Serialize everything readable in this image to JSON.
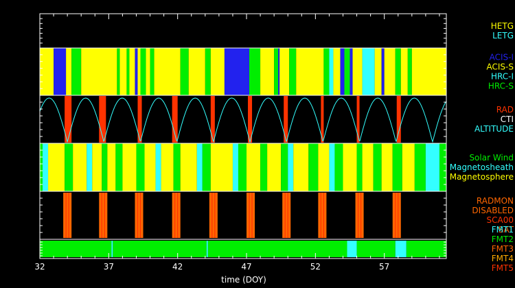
{
  "chart_data": {
    "type": "timeline",
    "xlabel": "time (DOY)",
    "xlim": [
      32,
      61.5
    ],
    "xticks": [
      32,
      37,
      42,
      47,
      52,
      57
    ],
    "colors": {
      "yellow": "#ffff00",
      "cyan": "#33ffff",
      "blue": "#2222ee",
      "green": "#00ee00",
      "red": "#ff3300",
      "orange": "#ff6600",
      "white": "#ffffff"
    },
    "panels": [
      {
        "id": "grating",
        "legend": [
          {
            "label": "HETG",
            "color": "#ffff00"
          },
          {
            "label": "LETG",
            "color": "#33ffff"
          }
        ],
        "segments": []
      },
      {
        "id": "instrument",
        "legend": [
          {
            "label": "ACIS-I",
            "color": "#2222ee"
          },
          {
            "label": "ACIS-S",
            "color": "#ffff00"
          },
          {
            "label": "HRC-I",
            "color": "#33ffff"
          },
          {
            "label": "HRC-S",
            "color": "#00ee00"
          }
        ],
        "segments": [
          [
            32.0,
            33.0,
            "ACIS-S"
          ],
          [
            33.0,
            33.9,
            "ACIS-I"
          ],
          [
            33.9,
            34.3,
            "ACIS-S"
          ],
          [
            34.3,
            35.0,
            "HRC-S"
          ],
          [
            35.0,
            37.6,
            "ACIS-S"
          ],
          [
            37.6,
            37.8,
            "HRC-S"
          ],
          [
            37.8,
            38.3,
            "ACIS-S"
          ],
          [
            38.3,
            38.5,
            "HRC-S"
          ],
          [
            38.5,
            38.9,
            "ACIS-S"
          ],
          [
            38.9,
            39.1,
            "ACIS-I"
          ],
          [
            39.1,
            39.3,
            "ACIS-S"
          ],
          [
            39.3,
            39.7,
            "HRC-S"
          ],
          [
            39.7,
            40.0,
            "ACIS-S"
          ],
          [
            40.0,
            40.3,
            "HRC-S"
          ],
          [
            40.3,
            42.2,
            "ACIS-S"
          ],
          [
            42.2,
            42.8,
            "HRC-S"
          ],
          [
            42.8,
            44.0,
            "ACIS-S"
          ],
          [
            44.0,
            44.4,
            "HRC-S"
          ],
          [
            44.4,
            45.4,
            "ACIS-S"
          ],
          [
            45.4,
            47.2,
            "ACIS-I"
          ],
          [
            47.2,
            48.0,
            "HRC-S"
          ],
          [
            48.0,
            49.0,
            "ACIS-S"
          ],
          [
            49.0,
            49.3,
            "HRC-S"
          ],
          [
            49.3,
            49.4,
            "ACIS-I"
          ],
          [
            49.4,
            50.1,
            "ACIS-S"
          ],
          [
            50.1,
            50.6,
            "HRC-S"
          ],
          [
            50.6,
            52.6,
            "ACIS-S"
          ],
          [
            52.6,
            53.0,
            "HRC-S"
          ],
          [
            53.0,
            53.3,
            "HRC-I"
          ],
          [
            53.3,
            53.8,
            "ACIS-S"
          ],
          [
            53.8,
            54.1,
            "ACIS-I"
          ],
          [
            54.1,
            54.5,
            "HRC-S"
          ],
          [
            54.5,
            54.7,
            "ACIS-I"
          ],
          [
            54.7,
            55.4,
            "ACIS-S"
          ],
          [
            55.4,
            56.3,
            "HRC-I"
          ],
          [
            56.3,
            56.8,
            "ACIS-S"
          ],
          [
            56.8,
            57.0,
            "ACIS-I"
          ],
          [
            57.0,
            57.8,
            "ACIS-S"
          ],
          [
            57.8,
            58.2,
            "HRC-S"
          ],
          [
            58.2,
            58.7,
            "ACIS-S"
          ],
          [
            58.7,
            59.0,
            "HRC-S"
          ],
          [
            59.0,
            61.5,
            "ACIS-S"
          ]
        ]
      },
      {
        "id": "radiation",
        "legend": [
          {
            "label": "RAD",
            "color": "#ff3300"
          },
          {
            "label": "CTI",
            "color": "#ffffff"
          },
          {
            "label": "ALTITUDE",
            "color": "#33ffff"
          }
        ],
        "orbit_period_days": 2.65,
        "orbit_perigees": [
          34.0,
          36.65,
          39.3,
          41.95,
          44.6,
          47.25,
          49.9,
          52.55,
          55.2,
          57.85,
          60.5
        ],
        "rad_segments": [
          [
            33.8,
            34.3
          ],
          [
            36.3,
            36.8
          ],
          [
            39.1,
            39.4
          ],
          [
            41.6,
            42.0
          ],
          [
            44.4,
            44.7
          ],
          [
            47.1,
            47.4
          ],
          [
            49.7,
            50.0
          ],
          [
            52.4,
            52.6
          ],
          [
            55.0,
            55.2
          ],
          [
            57.9,
            58.2
          ]
        ]
      },
      {
        "id": "environment",
        "legend": [
          {
            "label": "Solar Wind",
            "color": "#00ee00"
          },
          {
            "label": "Magnetosheath",
            "color": "#33ffff"
          },
          {
            "label": "Magnetosphere",
            "color": "#ffff00"
          }
        ],
        "segments": [
          [
            32.0,
            32.2,
            "Solar Wind"
          ],
          [
            32.2,
            32.6,
            "Magnetosheath"
          ],
          [
            32.6,
            33.8,
            "Magnetosphere"
          ],
          [
            33.8,
            34.4,
            "Solar Wind"
          ],
          [
            34.4,
            35.4,
            "Magnetosphere"
          ],
          [
            35.4,
            35.8,
            "Magnetosheath"
          ],
          [
            35.8,
            36.5,
            "Magnetosphere"
          ],
          [
            36.5,
            36.9,
            "Solar Wind"
          ],
          [
            36.9,
            37.5,
            "Magnetosphere"
          ],
          [
            37.5,
            38.0,
            "Solar Wind"
          ],
          [
            38.0,
            39.0,
            "Magnetosphere"
          ],
          [
            39.0,
            39.6,
            "Solar Wind"
          ],
          [
            39.6,
            40.4,
            "Magnetosphere"
          ],
          [
            40.4,
            40.8,
            "Magnetosheath"
          ],
          [
            40.8,
            41.7,
            "Magnetosphere"
          ],
          [
            41.7,
            42.2,
            "Solar Wind"
          ],
          [
            42.2,
            43.4,
            "Magnetosphere"
          ],
          [
            43.4,
            43.8,
            "Magnetosheath"
          ],
          [
            43.8,
            44.4,
            "Solar Wind"
          ],
          [
            44.4,
            46.0,
            "Magnetosphere"
          ],
          [
            46.0,
            46.4,
            "Magnetosheath"
          ],
          [
            46.4,
            47.0,
            "Solar Wind"
          ],
          [
            47.0,
            48.0,
            "Magnetosphere"
          ],
          [
            48.0,
            48.5,
            "Solar Wind"
          ],
          [
            48.5,
            49.5,
            "Magnetosphere"
          ],
          [
            49.5,
            50.0,
            "Solar Wind"
          ],
          [
            50.0,
            50.4,
            "Magnetosheath"
          ],
          [
            50.4,
            51.5,
            "Magnetosphere"
          ],
          [
            51.5,
            52.2,
            "Solar Wind"
          ],
          [
            52.2,
            53.0,
            "Magnetosphere"
          ],
          [
            53.0,
            53.4,
            "Magnetosheath"
          ],
          [
            53.4,
            54.0,
            "Solar Wind"
          ],
          [
            54.0,
            55.0,
            "Magnetosphere"
          ],
          [
            55.0,
            55.4,
            "Solar Wind"
          ],
          [
            55.4,
            56.2,
            "Magnetosphere"
          ],
          [
            56.2,
            56.8,
            "Solar Wind"
          ],
          [
            56.8,
            57.6,
            "Magnetosphere"
          ],
          [
            57.6,
            58.3,
            "Solar Wind"
          ],
          [
            58.3,
            59.2,
            "Magnetosphere"
          ],
          [
            59.2,
            60.0,
            "Solar Wind"
          ],
          [
            60.0,
            61.0,
            "Magnetosheath"
          ],
          [
            61.0,
            61.5,
            "Solar Wind"
          ]
        ]
      },
      {
        "id": "radmon",
        "legend": [
          {
            "label": "RADMON",
            "color": "#ff6600"
          },
          {
            "label": "DISABLED",
            "color": "#ff6600"
          },
          {
            "label": "SCA00",
            "color": "#ff3300"
          },
          {
            "label": "SAT",
            "color": "#ff6600"
          }
        ],
        "disabled_segments": [
          [
            33.7,
            34.3
          ],
          [
            36.3,
            36.9
          ],
          [
            38.9,
            39.5
          ],
          [
            41.6,
            42.2
          ],
          [
            44.3,
            44.9
          ],
          [
            47.0,
            47.6
          ],
          [
            49.6,
            50.2
          ],
          [
            52.2,
            52.8
          ],
          [
            54.9,
            55.5
          ],
          [
            57.6,
            58.2
          ]
        ],
        "sca_lines": [
          33.9,
          34.1,
          36.5,
          36.7,
          39.1,
          39.3,
          41.8,
          42.0,
          44.5,
          44.7,
          47.2,
          47.4,
          49.8,
          50.0,
          52.4,
          52.6,
          55.1,
          55.3,
          57.8,
          58.0
        ]
      },
      {
        "id": "format",
        "legend": [
          {
            "label": "FMT1",
            "color": "#33ffff"
          },
          {
            "label": "FMT2",
            "color": "#00ee00"
          },
          {
            "label": "FMT3",
            "color": "#ff6600"
          },
          {
            "label": "FMT4",
            "color": "#ffaa00"
          },
          {
            "label": "FMT5",
            "color": "#ff3300"
          }
        ],
        "segments": [
          [
            32.0,
            37.2,
            "FMT2"
          ],
          [
            37.2,
            37.3,
            "FMT1"
          ],
          [
            37.3,
            44.1,
            "FMT2"
          ],
          [
            44.1,
            44.2,
            "FMT1"
          ],
          [
            44.2,
            54.3,
            "FMT2"
          ],
          [
            54.3,
            55.0,
            "FMT1"
          ],
          [
            55.0,
            57.8,
            "FMT2"
          ],
          [
            57.8,
            58.6,
            "FMT1"
          ],
          [
            58.6,
            61.5,
            "FMT2"
          ]
        ]
      }
    ]
  }
}
